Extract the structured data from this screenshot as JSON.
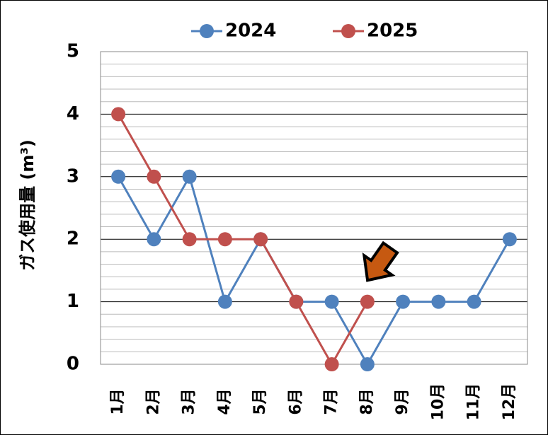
{
  "chart_data": {
    "type": "line",
    "y_label": "ガス使用量 (m³)",
    "categories": [
      "1月",
      "2月",
      "3月",
      "4月",
      "5月",
      "6月",
      "7月",
      "8月",
      "9月",
      "10月",
      "11月",
      "12月"
    ],
    "series": [
      {
        "name": "2024",
        "color": "#4f81bd",
        "values": [
          3,
          2,
          3,
          1,
          2,
          1,
          1,
          0,
          1,
          1,
          1,
          2
        ]
      },
      {
        "name": "2025",
        "color": "#c0504d",
        "values": [
          4,
          3,
          2,
          2,
          2,
          1,
          0,
          1,
          null,
          null,
          null,
          null
        ]
      }
    ],
    "ylim": [
      0,
      5
    ],
    "yticks": [
      0,
      1,
      2,
      3,
      4,
      5
    ],
    "minor_yticks": [
      0.2,
      0.4,
      0.6,
      0.8,
      1.2,
      1.4,
      1.6,
      1.8,
      2.2,
      2.4,
      2.6,
      2.8,
      3.2,
      3.4,
      3.6,
      3.8,
      4.2,
      4.4,
      4.6,
      4.8
    ],
    "grid": true,
    "legend": "top"
  }
}
